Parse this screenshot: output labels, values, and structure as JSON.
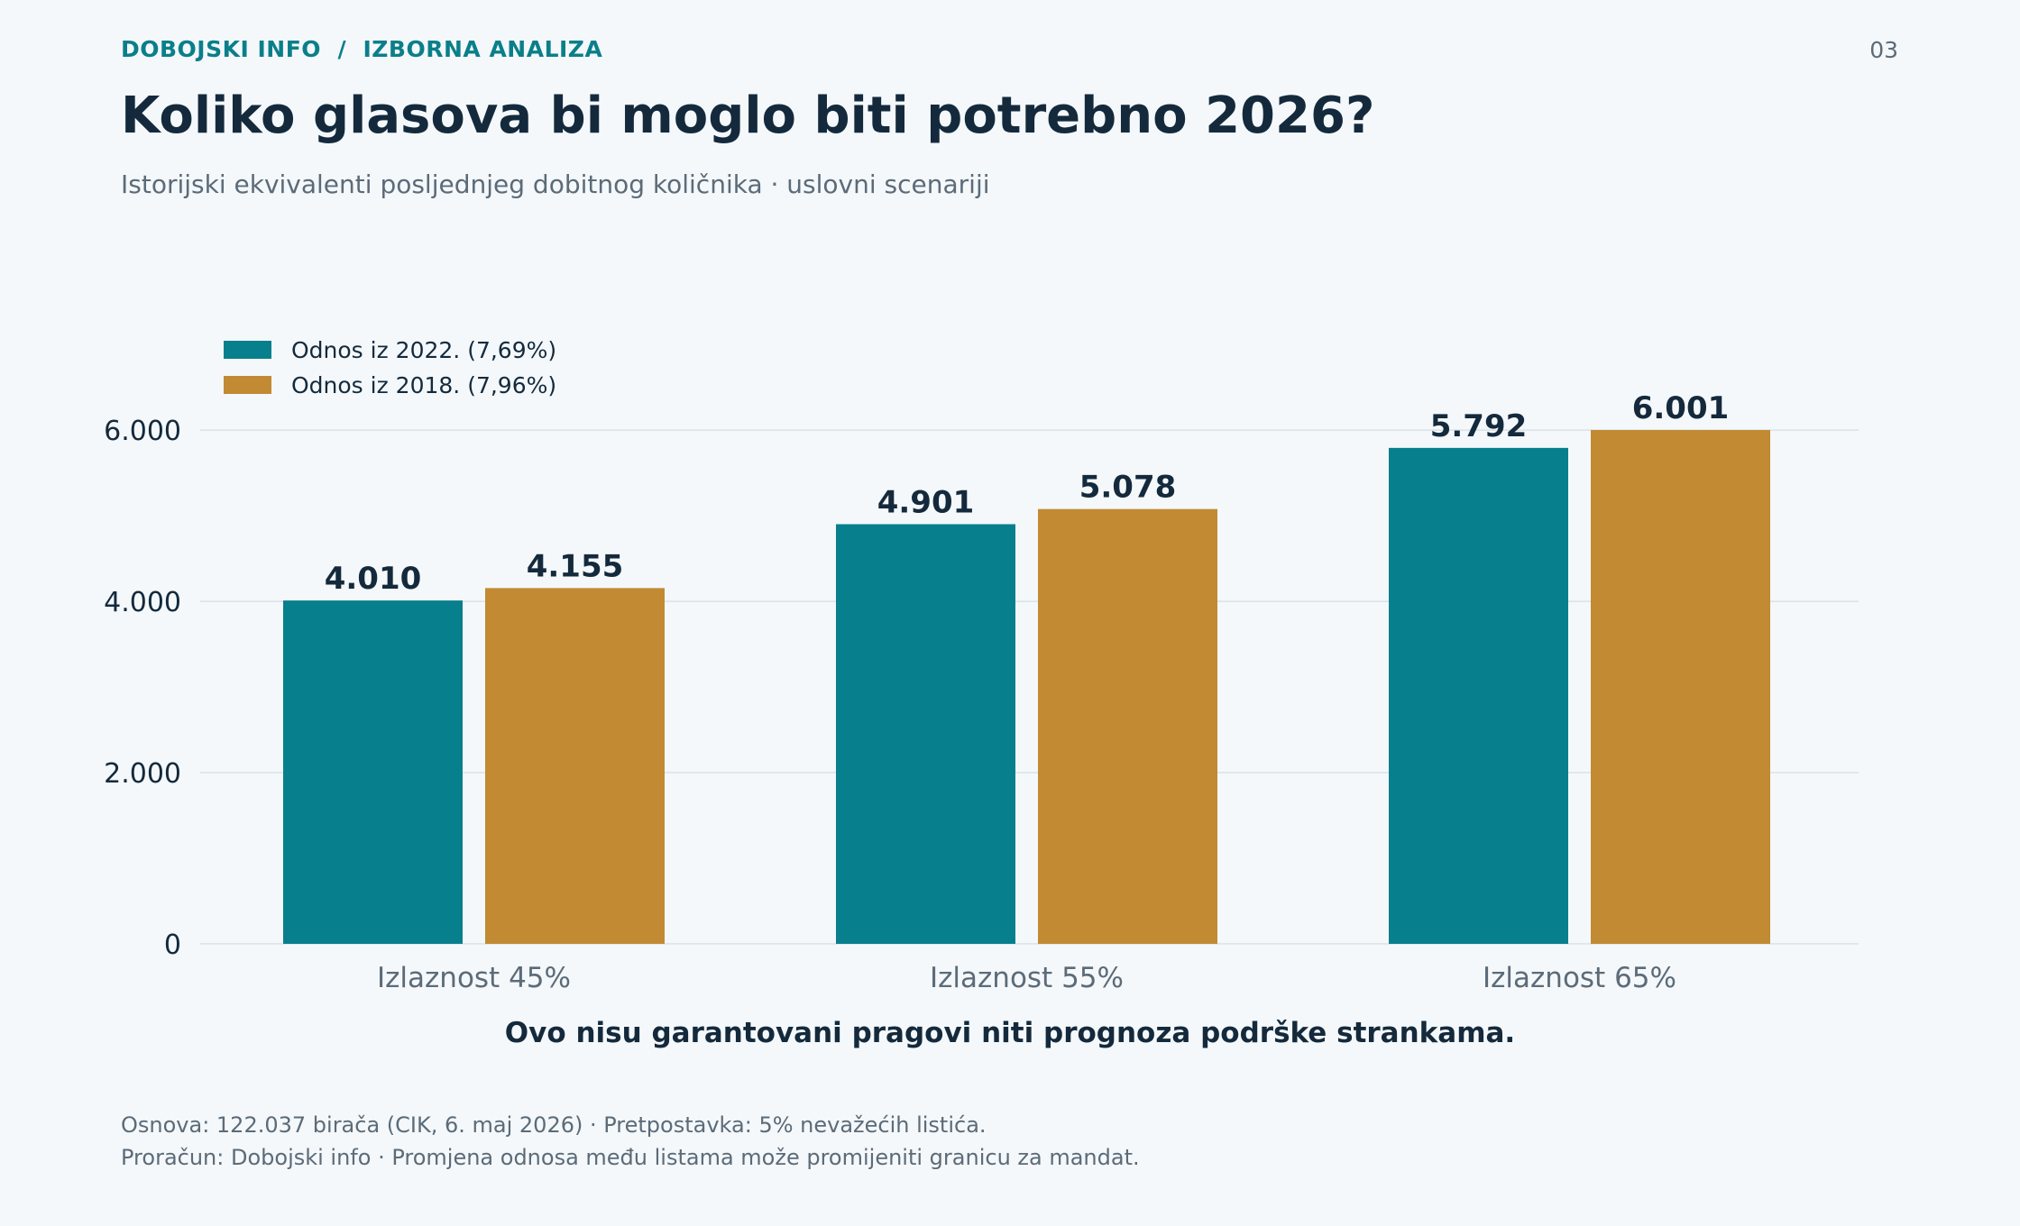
{
  "header": {
    "kicker": "DOBOJSKI INFO  /  IZBORNA ANALIZA",
    "page_number": "03",
    "title": "Koliko glasova bi moglo biti potrebno 2026?",
    "subtitle": "Istorijski ekvivalenti posljednjeg dobitnog količnika · uslovni scenariji"
  },
  "chart_data": {
    "type": "bar",
    "categories": [
      "Izlaznost 45%",
      "Izlaznost 55%",
      "Izlaznost 65%"
    ],
    "series": [
      {
        "name": "Odnos iz 2022. (7,69%)",
        "color": "#087f8c",
        "values": [
          4010,
          4901,
          5792
        ],
        "labels": [
          "4.010",
          "4.901",
          "5.792"
        ]
      },
      {
        "name": "Odnos iz 2018. (7,96%)",
        "color": "#c18a33",
        "values": [
          4155,
          5078,
          6001
        ],
        "labels": [
          "4.155",
          "5.078",
          "6.001"
        ]
      }
    ],
    "yticks": [
      0,
      2000,
      4000,
      6000
    ],
    "ytick_labels": [
      "0",
      "2.000",
      "4.000",
      "6.000"
    ],
    "ylim": [
      0,
      6001
    ],
    "grid": true,
    "legend_position": "top-left",
    "xlabel": "Ovo nisu garantovani pragovi niti prognoza podrške strankama."
  },
  "footer": {
    "line1": "Osnova: 122.037 birača (CIK, 6. maj 2026) · Pretpostavka: 5% nevažećih listića.",
    "line2": "Proračun: Dobojski info · Promjena odnosa među listama može promijeniti granicu za mandat."
  }
}
